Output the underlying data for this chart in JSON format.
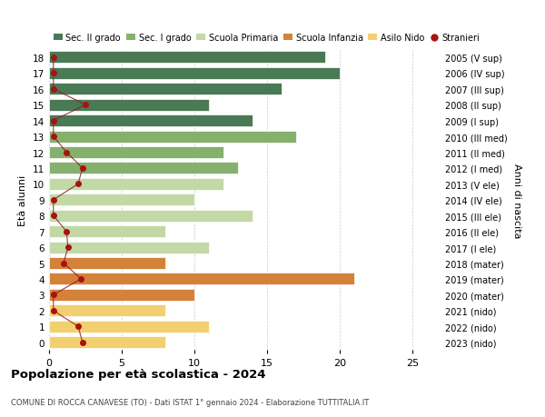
{
  "ages": [
    18,
    17,
    16,
    15,
    14,
    13,
    12,
    11,
    10,
    9,
    8,
    7,
    6,
    5,
    4,
    3,
    2,
    1,
    0
  ],
  "years": [
    "2005 (V sup)",
    "2006 (IV sup)",
    "2007 (III sup)",
    "2008 (II sup)",
    "2009 (I sup)",
    "2010 (III med)",
    "2011 (II med)",
    "2012 (I med)",
    "2013 (V ele)",
    "2014 (IV ele)",
    "2015 (III ele)",
    "2016 (II ele)",
    "2017 (I ele)",
    "2018 (mater)",
    "2019 (mater)",
    "2020 (mater)",
    "2021 (nido)",
    "2022 (nido)",
    "2023 (nido)"
  ],
  "bar_values": [
    19,
    20,
    16,
    11,
    14,
    17,
    12,
    13,
    12,
    10,
    14,
    8,
    11,
    8,
    21,
    10,
    8,
    11,
    8
  ],
  "bar_colors": [
    "#4a7a55",
    "#4a7a55",
    "#4a7a55",
    "#4a7a55",
    "#4a7a55",
    "#85b06e",
    "#85b06e",
    "#85b06e",
    "#c2d9a5",
    "#c2d9a5",
    "#c2d9a5",
    "#c2d9a5",
    "#c2d9a5",
    "#d4813a",
    "#d4813a",
    "#d4813a",
    "#f2d070",
    "#f2d070",
    "#f2d070"
  ],
  "stranieri_x": [
    0.3,
    0.3,
    0.3,
    2.5,
    0.3,
    0.3,
    1.2,
    2.3,
    2.0,
    0.3,
    0.3,
    1.2,
    1.3,
    1.0,
    2.2,
    0.3,
    0.3,
    2.0,
    2.3
  ],
  "legend_labels": [
    "Sec. II grado",
    "Sec. I grado",
    "Scuola Primaria",
    "Scuola Infanzia",
    "Asilo Nido",
    "Stranieri"
  ],
  "legend_colors": [
    "#4a7a55",
    "#85b06e",
    "#c2d9a5",
    "#d4813a",
    "#f2d070",
    "#aa1111"
  ],
  "title": "Popolazione per età scolastica - 2024",
  "subtitle": "COMUNE DI ROCCA CANAVESE (TO) - Dati ISTAT 1° gennaio 2024 - Elaborazione TUTTITALIA.IT",
  "ylabel_left": "Età alunni",
  "ylabel_right": "Anni di nascita",
  "xlim": [
    0,
    27
  ],
  "bar_height": 0.75,
  "background_color": "#ffffff",
  "grid_color": "#cccccc"
}
